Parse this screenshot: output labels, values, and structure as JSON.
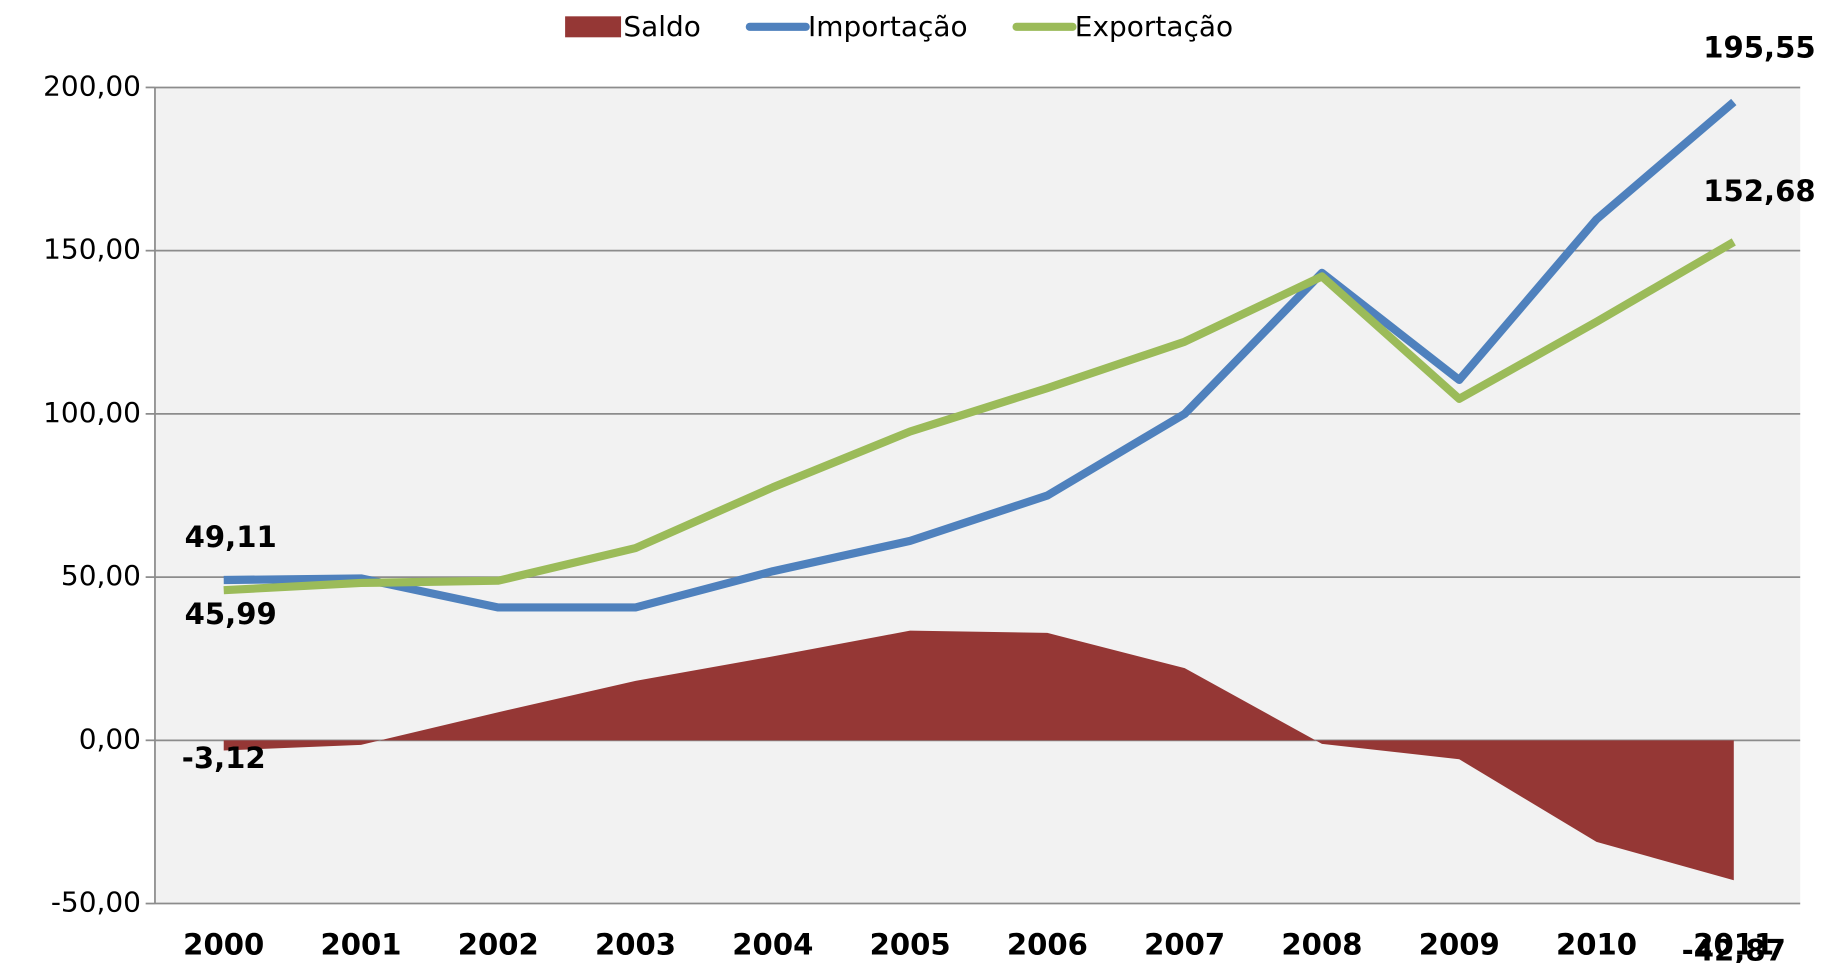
{
  "chart_data": {
    "type": "line",
    "categories": [
      "2000",
      "2001",
      "2002",
      "2003",
      "2004",
      "2005",
      "2006",
      "2007",
      "2008",
      "2009",
      "2010",
      "2011"
    ],
    "series": [
      {
        "name": "Saldo",
        "type": "area",
        "color": "#953735",
        "values": [
          -3.12,
          -1.4,
          8.6,
          18.2,
          25.7,
          33.6,
          32.9,
          22.1,
          -1.1,
          -5.8,
          -31.1,
          -42.87
        ],
        "value_labels": [
          "-3,12",
          null,
          null,
          null,
          null,
          null,
          null,
          null,
          null,
          null,
          null,
          "-42,87"
        ]
      },
      {
        "name": "Importação",
        "type": "line",
        "color": "#4f81bd",
        "values": [
          49.11,
          49.6,
          40.7,
          40.7,
          51.8,
          61.1,
          75,
          100,
          143.2,
          110.4,
          159.6,
          195.55
        ],
        "value_labels": [
          "49,11",
          null,
          null,
          null,
          null,
          null,
          null,
          null,
          null,
          null,
          null,
          "195,55"
        ]
      },
      {
        "name": "Exportação",
        "type": "line",
        "color": "#9bbb59",
        "values": [
          45.99,
          48.2,
          48.9,
          58.9,
          77.5,
          94.6,
          107.9,
          122.1,
          142.1,
          104.6,
          128.2,
          152.68
        ],
        "value_labels": [
          "45,99",
          null,
          null,
          null,
          null,
          null,
          null,
          null,
          null,
          null,
          null,
          "152,68"
        ]
      }
    ],
    "ylim": [
      -50,
      200
    ],
    "yticks": [
      {
        "value": -50,
        "label": "-50,00"
      },
      {
        "value": 0,
        "label": "0,00"
      },
      {
        "value": 50,
        "label": "50,00"
      },
      {
        "value": 100,
        "label": "100,00"
      },
      {
        "value": 150,
        "label": "150,00"
      },
      {
        "value": 200,
        "label": "200,00"
      }
    ],
    "grid": true,
    "legend": "top"
  }
}
